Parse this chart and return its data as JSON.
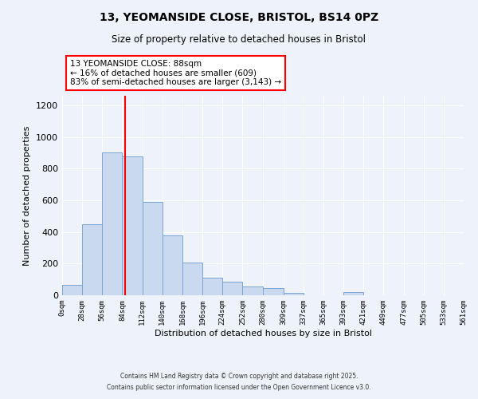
{
  "title": "13, YEOMANSIDE CLOSE, BRISTOL, BS14 0PZ",
  "subtitle": "Size of property relative to detached houses in Bristol",
  "xlabel": "Distribution of detached houses by size in Bristol",
  "ylabel": "Number of detached properties",
  "bar_color": "#c9d9f0",
  "bar_edgecolor": "#7ba4d4",
  "vline_x": 88,
  "vline_color": "red",
  "bin_edges": [
    0,
    28,
    56,
    84,
    112,
    140,
    168,
    196,
    224,
    252,
    280,
    309,
    337,
    365,
    393,
    421,
    449,
    477,
    505,
    533,
    561
  ],
  "bar_heights": [
    65,
    450,
    900,
    875,
    590,
    380,
    205,
    112,
    85,
    55,
    45,
    15,
    0,
    0,
    20,
    0,
    0,
    0,
    0,
    0
  ],
  "tick_labels": [
    "0sqm",
    "28sqm",
    "56sqm",
    "84sqm",
    "112sqm",
    "140sqm",
    "168sqm",
    "196sqm",
    "224sqm",
    "252sqm",
    "280sqm",
    "309sqm",
    "337sqm",
    "365sqm",
    "393sqm",
    "421sqm",
    "449sqm",
    "477sqm",
    "505sqm",
    "533sqm",
    "561sqm"
  ],
  "annotation_title": "13 YEOMANSIDE CLOSE: 88sqm",
  "annotation_line1": "← 16% of detached houses are smaller (609)",
  "annotation_line2": "83% of semi-detached houses are larger (3,143) →",
  "annotation_box_color": "white",
  "annotation_box_edgecolor": "red",
  "ylim": [
    0,
    1260
  ],
  "yticks": [
    0,
    200,
    400,
    600,
    800,
    1000,
    1200
  ],
  "footnote1": "Contains HM Land Registry data © Crown copyright and database right 2025.",
  "footnote2": "Contains public sector information licensed under the Open Government Licence v3.0.",
  "background_color": "#eef2fb"
}
